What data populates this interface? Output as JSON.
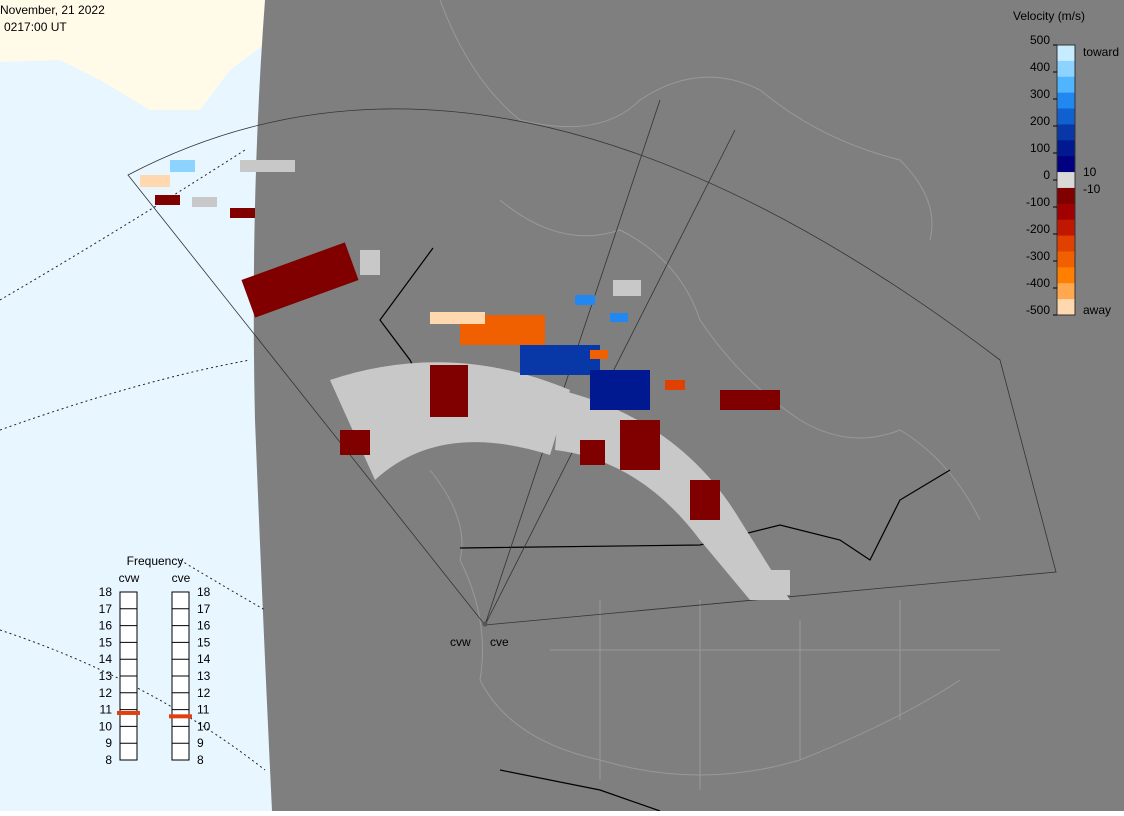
{
  "header": {
    "date": "November, 21 2022",
    "time": "0217:00 UT"
  },
  "velocity_scale": {
    "title": "Velocity (m/s)",
    "ticks": [
      500,
      400,
      300,
      200,
      100,
      0,
      -100,
      -200,
      -300,
      -400,
      -500
    ],
    "extra_labels": [
      "10",
      "-10"
    ],
    "toward": "toward",
    "away": "away",
    "colors": [
      "#c8ecff",
      "#8cd4ff",
      "#50b4ff",
      "#2088f0",
      "#1060d0",
      "#0838a8",
      "#001890",
      "#000080",
      "#d8d8d8",
      "#800000",
      "#a00000",
      "#c01800",
      "#e04000",
      "#f06000",
      "#ff8000",
      "#ffa850",
      "#ffd8b0"
    ]
  },
  "frequency": {
    "title": "Frequency",
    "ticks": [
      8,
      9,
      10,
      11,
      12,
      13,
      14,
      15,
      16,
      17,
      18
    ],
    "radars": [
      {
        "name": "cvw",
        "value": 10.8
      },
      {
        "name": "cve",
        "value": 10.6
      }
    ]
  },
  "sites": [
    "cvw",
    "cve"
  ]
}
